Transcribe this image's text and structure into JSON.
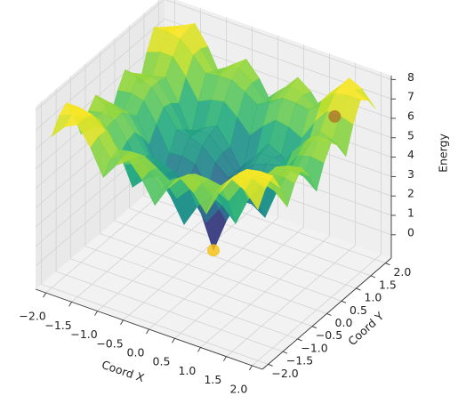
{
  "chart_data": {
    "type": "surface",
    "xlabel": "Coord X",
    "ylabel": "Coord Y",
    "zlabel": "Energy",
    "colormap": "viridis",
    "x": [
      -2,
      -1.75,
      -1.5,
      -1.25,
      -1,
      -0.75,
      -0.5,
      -0.25,
      0,
      0.25,
      0.5,
      0.75,
      1,
      1.25,
      1.5,
      1.75,
      2
    ],
    "y": [
      -2,
      -1.75,
      -1.5,
      -1.25,
      -1,
      -0.75,
      -0.5,
      -0.25,
      0,
      0.25,
      0.5,
      0.75,
      1,
      1.25,
      1.5,
      1.75,
      2
    ],
    "z": [
      [
        6.594,
        7.335,
        7.674,
        6.741,
        5.422,
        6.283,
        6.776,
        6.029,
        4.927,
        6.029,
        6.776,
        6.283,
        5.422,
        6.741,
        7.674,
        7.335,
        6.594
      ],
      [
        7.335,
        7.624,
        7.675,
        6.963,
        6.029,
        6.439,
        6.651,
        6.142,
        5.454,
        6.142,
        6.651,
        6.439,
        6.029,
        6.963,
        7.675,
        7.624,
        7.335
      ],
      [
        7.674,
        7.675,
        7.534,
        6.938,
        6.219,
        6.335,
        6.357,
        5.982,
        5.541,
        5.982,
        6.357,
        6.335,
        6.219,
        6.938,
        7.534,
        7.675,
        7.674
      ],
      [
        6.741,
        6.963,
        6.938,
        6.142,
        5.121,
        5.444,
        5.579,
        5.017,
        4.31,
        5.017,
        5.579,
        5.444,
        5.121,
        6.142,
        6.938,
        6.963,
        6.741
      ],
      [
        5.422,
        6.029,
        6.219,
        5.121,
        3.625,
        4.31,
        4.643,
        3.782,
        2.638,
        3.782,
        4.643,
        4.31,
        3.625,
        5.121,
        6.219,
        6.029,
        5.422
      ],
      [
        6.283,
        6.439,
        6.335,
        5.444,
        4.31,
        4.504,
        4.506,
        3.834,
        3.082,
        3.834,
        4.506,
        4.504,
        4.31,
        5.444,
        6.335,
        6.439,
        6.283
      ],
      [
        6.776,
        6.651,
        6.357,
        5.579,
        4.643,
        4.506,
        4.253,
        3.632,
        3.083,
        3.632,
        4.253,
        4.506,
        4.643,
        5.579,
        6.357,
        6.651,
        6.776
      ],
      [
        6.029,
        6.142,
        5.982,
        5.017,
        3.782,
        3.834,
        3.632,
        2.693,
        1.764,
        2.693,
        3.632,
        3.834,
        3.782,
        5.017,
        5.982,
        6.142,
        6.029
      ],
      [
        4.927,
        5.454,
        5.541,
        4.31,
        2.638,
        3.082,
        3.083,
        1.764,
        0,
        1.764,
        3.083,
        3.082,
        2.638,
        4.31,
        5.541,
        5.454,
        4.927
      ],
      [
        6.029,
        6.142,
        5.982,
        5.017,
        3.782,
        3.834,
        3.632,
        2.693,
        1.764,
        2.693,
        3.632,
        3.834,
        3.782,
        5.017,
        5.982,
        6.142,
        6.029
      ],
      [
        6.776,
        6.651,
        6.357,
        5.579,
        4.643,
        4.506,
        4.253,
        3.632,
        3.083,
        3.632,
        4.253,
        4.506,
        4.643,
        5.579,
        6.357,
        6.651,
        6.776
      ],
      [
        6.283,
        6.439,
        6.335,
        5.444,
        4.31,
        4.504,
        4.506,
        3.834,
        3.082,
        3.834,
        4.506,
        4.504,
        4.31,
        5.444,
        6.335,
        6.439,
        6.283
      ],
      [
        5.422,
        6.029,
        6.219,
        5.121,
        3.625,
        4.31,
        4.643,
        3.782,
        2.638,
        3.782,
        4.643,
        4.31,
        3.625,
        5.121,
        6.219,
        6.029,
        5.422
      ],
      [
        6.741,
        6.963,
        6.938,
        6.142,
        5.121,
        5.444,
        5.579,
        5.017,
        4.31,
        5.017,
        5.579,
        5.444,
        5.121,
        6.142,
        6.938,
        6.963,
        6.741
      ],
      [
        7.674,
        7.675,
        7.534,
        6.938,
        6.219,
        6.335,
        6.357,
        5.982,
        5.541,
        5.982,
        6.357,
        6.335,
        6.219,
        6.938,
        7.534,
        7.675,
        7.674
      ],
      [
        7.335,
        7.624,
        7.675,
        6.963,
        6.029,
        6.439,
        6.651,
        6.142,
        5.454,
        6.142,
        6.651,
        6.439,
        6.029,
        6.963,
        7.675,
        7.624,
        7.335
      ],
      [
        6.594,
        7.335,
        7.674,
        6.741,
        5.422,
        6.283,
        6.776,
        6.029,
        4.927,
        6.029,
        6.776,
        6.283,
        5.422,
        6.741,
        7.674,
        7.335,
        6.594
      ]
    ],
    "points": {
      "x": [
        0,
        1.5
      ],
      "y": [
        0,
        1.5
      ],
      "z": [
        0,
        6.35
      ],
      "colors": [
        "#f7c31b",
        "#b07a2a"
      ]
    },
    "xlim": [
      -2.2,
      2.2
    ],
    "ylim": [
      -2.2,
      2.2
    ],
    "zlim": [
      -1.2,
      8.2
    ],
    "xticks": [
      {
        "value": -2,
        "label": "−2.0"
      },
      {
        "value": -1.5,
        "label": "−1.5"
      },
      {
        "value": -1,
        "label": "−1.0"
      },
      {
        "value": -0.5,
        "label": "−0.5"
      },
      {
        "value": 0,
        "label": "0.0"
      },
      0.5,
      {
        "value": 1,
        "label": "1.0"
      },
      1.5,
      {
        "value": 2,
        "label": "2.0"
      }
    ],
    "yticks": [
      {
        "value": -2,
        "label": "−2.0"
      },
      {
        "value": -1.5,
        "label": "−1.5"
      },
      {
        "value": -1,
        "label": "−1.0"
      },
      {
        "value": -0.5,
        "label": "−0.5"
      },
      {
        "value": 0,
        "label": "0.0"
      },
      0.5,
      {
        "value": 1,
        "label": "1.0"
      },
      1.5,
      {
        "value": 2,
        "label": "2.0"
      }
    ],
    "zticks": [
      0,
      1,
      2,
      3,
      4,
      5,
      6,
      7,
      8
    ],
    "grid": true
  }
}
